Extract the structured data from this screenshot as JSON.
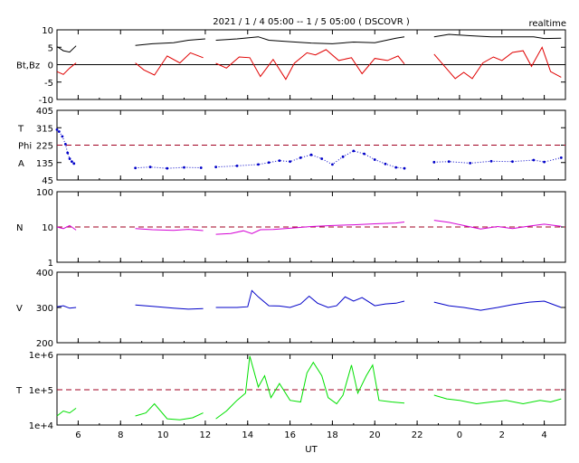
{
  "title": "2021 / 1 / 4   05:00 --  1 / 5   05:00 ( DSCOVR )",
  "mode_label": "realtime",
  "x_axis": {
    "label": "UT",
    "range_hours": [
      5,
      29
    ],
    "ticks": [
      {
        "hour": 6,
        "label": "6"
      },
      {
        "hour": 8,
        "label": "8"
      },
      {
        "hour": 10,
        "label": "10"
      },
      {
        "hour": 12,
        "label": "12"
      },
      {
        "hour": 14,
        "label": "14"
      },
      {
        "hour": 16,
        "label": "16"
      },
      {
        "hour": 18,
        "label": "18"
      },
      {
        "hour": 20,
        "label": "20"
      },
      {
        "hour": 22,
        "label": "22"
      },
      {
        "hour": 24,
        "label": "0"
      },
      {
        "hour": 26,
        "label": "2"
      },
      {
        "hour": 28,
        "label": "4"
      }
    ]
  },
  "chart_data": [
    {
      "type": "line",
      "panel_label": "Bt,Bz",
      "ylim": [
        -10,
        10
      ],
      "yticks": [
        "10",
        "5",
        "0",
        "-5",
        "-10"
      ],
      "zero_line": 0,
      "colors": {
        "Bt": "#000000",
        "Bz": "#e00000"
      },
      "series": [
        {
          "name": "Bt",
          "segments": [
            {
              "x": [
                5.0,
                5.3,
                5.6,
                5.9
              ],
              "y": [
                5.2,
                4.0,
                3.6,
                5.4
              ]
            },
            {
              "x": [
                8.7,
                9.5,
                10.5,
                11.2,
                12.0
              ],
              "y": [
                5.5,
                6.0,
                6.3,
                7.0,
                7.4
              ]
            },
            {
              "x": [
                12.5,
                13.5,
                14.5,
                15.0,
                16.0,
                17.0,
                18.0,
                19.0,
                20.0,
                21.0,
                21.4
              ],
              "y": [
                7.0,
                7.4,
                8.0,
                7.0,
                6.6,
                6.2,
                6.0,
                6.5,
                6.3,
                7.6,
                8.0
              ]
            },
            {
              "x": [
                22.8,
                23.5,
                24.5,
                25.5,
                26.5,
                27.5,
                28.0,
                28.8
              ],
              "y": [
                8.0,
                8.7,
                8.3,
                8.0,
                8.0,
                8.0,
                7.5,
                7.6
              ]
            }
          ]
        },
        {
          "name": "Bz",
          "segments": [
            {
              "x": [
                5.0,
                5.3,
                5.6,
                5.9
              ],
              "y": [
                -2.0,
                -2.8,
                -1.0,
                0.5
              ]
            },
            {
              "x": [
                8.7,
                9.1,
                9.6,
                10.2,
                10.8,
                11.3,
                11.9
              ],
              "y": [
                0.5,
                -1.5,
                -3.0,
                2.5,
                0.5,
                3.4,
                2.0
              ]
            },
            {
              "x": [
                12.5,
                13.0,
                13.6,
                14.1,
                14.6,
                15.2,
                15.8,
                16.2,
                16.8,
                17.2,
                17.7,
                18.3,
                18.9,
                19.4,
                20.0,
                20.6,
                21.1,
                21.4
              ],
              "y": [
                0.4,
                -1.0,
                2.2,
                2.0,
                -3.4,
                1.5,
                -4.2,
                0.4,
                3.4,
                2.8,
                4.3,
                1.2,
                2.0,
                -2.6,
                1.8,
                1.2,
                2.5,
                0.2
              ]
            },
            {
              "x": [
                22.8,
                23.3,
                23.8,
                24.2,
                24.6,
                25.1,
                25.6,
                26.0,
                26.5,
                27.0,
                27.4,
                27.9,
                28.3,
                28.8
              ],
              "y": [
                3.0,
                -0.5,
                -4.0,
                -2.2,
                -4.0,
                0.5,
                2.2,
                1.2,
                3.5,
                4.0,
                -0.5,
                5.0,
                -2.0,
                -3.6
              ]
            }
          ]
        }
      ]
    },
    {
      "type": "scatter",
      "panel_label": "T\nPhi\nA",
      "ylim": [
        45,
        405
      ],
      "yticks": [
        "405",
        "315",
        "225",
        "135",
        "45"
      ],
      "reference_line": 225,
      "colors": {
        "Phi": "#0000c8",
        "reference": "#a00020"
      },
      "series": [
        {
          "name": "Phi",
          "segments": [
            {
              "x": [
                5.0,
                5.1,
                5.25,
                5.4,
                5.5,
                5.6,
                5.7,
                5.8
              ],
              "y": [
                305,
                295,
                270,
                230,
                185,
                155,
                140,
                130
              ]
            },
            {
              "x": [
                8.7,
                9.4,
                10.2,
                11.0,
                11.8
              ],
              "y": [
                107,
                112,
                105,
                110,
                108
              ]
            },
            {
              "x": [
                12.5,
                13.5,
                14.5,
                15.0,
                15.5,
                16.0,
                16.5,
                17.0,
                17.5,
                18.0,
                18.5,
                19.0,
                19.5,
                20.0,
                20.5,
                21.0,
                21.4
              ],
              "y": [
                112,
                118,
                125,
                135,
                145,
                140,
                160,
                175,
                155,
                125,
                165,
                195,
                180,
                150,
                128,
                110,
                105
              ]
            },
            {
              "x": [
                22.8,
                23.5,
                24.5,
                25.5,
                26.5,
                27.5,
                28.0,
                28.8
              ],
              "y": [
                137,
                140,
                132,
                142,
                140,
                148,
                138,
                160
              ]
            }
          ]
        }
      ]
    },
    {
      "type": "line",
      "panel_label": "N",
      "scale": "log",
      "ylim": [
        1,
        100
      ],
      "yticks": [
        "100",
        "10",
        "1"
      ],
      "reference_line": 10,
      "colors": {
        "N": "#d400d4",
        "reference": "#a00020"
      },
      "series": [
        {
          "name": "N",
          "segments": [
            {
              "x": [
                5.0,
                5.3,
                5.6,
                5.9
              ],
              "y": [
                10,
                9,
                11,
                8.2
              ]
            },
            {
              "x": [
                8.7,
                9.5,
                10.5,
                11.2,
                11.9
              ],
              "y": [
                9.0,
                8.4,
                8.0,
                8.6,
                7.9
              ]
            },
            {
              "x": [
                12.5,
                13.2,
                13.8,
                14.2,
                14.6,
                15.2,
                16.0,
                17.0,
                18.0,
                19.0,
                20.0,
                21.0,
                21.4
              ],
              "y": [
                6.2,
                6.5,
                7.8,
                6.5,
                8.4,
                8.5,
                9.2,
                10.3,
                11.0,
                11.5,
                12.3,
                13.0,
                13.8
              ]
            },
            {
              "x": [
                22.8,
                23.5,
                24.2,
                25.0,
                25.8,
                26.5,
                27.3,
                28.0,
                28.8
              ],
              "y": [
                15.5,
                13.5,
                11.0,
                8.8,
                10.3,
                9.0,
                10.6,
                12.0,
                10.5
              ]
            }
          ]
        }
      ]
    },
    {
      "type": "line",
      "panel_label": "V",
      "ylim": [
        200,
        400
      ],
      "yticks": [
        "400",
        "300",
        "200"
      ],
      "colors": {
        "V": "#0000c8"
      },
      "series": [
        {
          "name": "V",
          "segments": [
            {
              "x": [
                5.0,
                5.3,
                5.6,
                5.9
              ],
              "y": [
                302,
                305,
                298,
                300
              ]
            },
            {
              "x": [
                8.7,
                9.5,
                10.5,
                11.2,
                11.9
              ],
              "y": [
                307,
                303,
                298,
                295,
                297
              ]
            },
            {
              "x": [
                12.5,
                13.5,
                14.0,
                14.2,
                14.5,
                15.0,
                15.5,
                16.0,
                16.5,
                16.9,
                17.3,
                17.8,
                18.2,
                18.6,
                19.0,
                19.4,
                20.0,
                20.5,
                21.0,
                21.4
              ],
              "y": [
                300,
                300,
                302,
                348,
                330,
                305,
                304,
                300,
                310,
                332,
                312,
                300,
                305,
                330,
                318,
                328,
                305,
                310,
                312,
                318
              ]
            },
            {
              "x": [
                22.8,
                23.5,
                24.2,
                25.0,
                25.8,
                26.5,
                27.3,
                28.0,
                28.8
              ],
              "y": [
                315,
                305,
                300,
                292,
                300,
                308,
                315,
                318,
                300
              ]
            }
          ]
        }
      ]
    },
    {
      "type": "line",
      "panel_label": "T",
      "scale": "log",
      "ylim": [
        10000,
        1000000
      ],
      "yticks": [
        "1e+6",
        "1e+5",
        "1e+4"
      ],
      "reference_line": 100000,
      "colors": {
        "T": "#00e000",
        "reference": "#a00020"
      },
      "series": [
        {
          "name": "T",
          "segments": [
            {
              "x": [
                5.0,
                5.3,
                5.6,
                5.9
              ],
              "y": [
                18000,
                25000,
                22000,
                30000
              ]
            },
            {
              "x": [
                8.7,
                9.2,
                9.6,
                10.2,
                10.8,
                11.4,
                11.9
              ],
              "y": [
                18000,
                22000,
                40000,
                15000,
                14000,
                16000,
                22000
              ]
            },
            {
              "x": [
                12.5,
                13.0,
                13.5,
                13.9,
                14.1,
                14.5,
                14.8,
                15.1,
                15.5,
                16.0,
                16.5,
                16.8,
                17.1,
                17.5,
                17.8,
                18.2,
                18.5,
                18.9,
                19.2,
                19.6,
                19.9,
                20.2,
                20.8,
                21.4
              ],
              "y": [
                15000,
                25000,
                50000,
                80000,
                900000,
                120000,
                250000,
                60000,
                150000,
                50000,
                45000,
                300000,
                600000,
                250000,
                60000,
                40000,
                70000,
                500000,
                80000,
                250000,
                500000,
                50000,
                45000,
                42000
              ]
            },
            {
              "x": [
                22.8,
                23.4,
                24.0,
                24.8,
                25.5,
                26.2,
                27.0,
                27.8,
                28.3,
                28.8
              ],
              "y": [
                70000,
                55000,
                50000,
                40000,
                45000,
                50000,
                40000,
                50000,
                45000,
                55000
              ]
            }
          ]
        }
      ]
    }
  ]
}
